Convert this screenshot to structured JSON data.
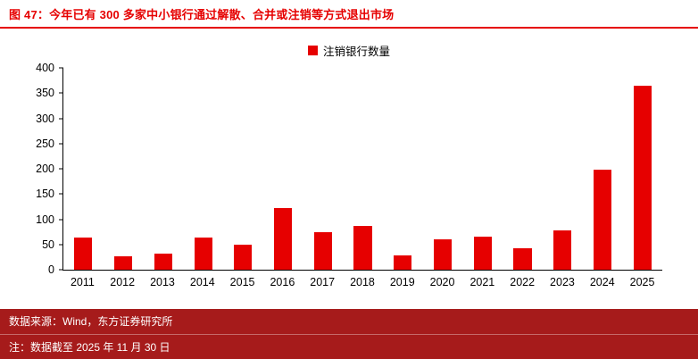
{
  "header": {
    "title": "图 47：今年已有 300 多家中小银行通过解散、合并或注销等方式退出市场"
  },
  "legend": {
    "label": "注销银行数量"
  },
  "footer": {
    "source": "数据来源：Wind，东方证券研究所",
    "note": "注：数据截至 2025 年 11 月 30 日"
  },
  "colors": {
    "bar": "#e60000",
    "title": "#e60000",
    "footer_bg": "#a61b1b",
    "axis": "#000000"
  },
  "chart_data": {
    "type": "bar",
    "title": "注销银行数量",
    "categories": [
      "2011",
      "2012",
      "2013",
      "2014",
      "2015",
      "2016",
      "2017",
      "2018",
      "2019",
      "2020",
      "2021",
      "2022",
      "2023",
      "2024",
      "2025"
    ],
    "values": [
      63,
      27,
      32,
      63,
      50,
      122,
      75,
      87,
      29,
      61,
      65,
      42,
      78,
      198,
      365
    ],
    "xlabel": "",
    "ylabel": "",
    "ylim": [
      0,
      400
    ],
    "yticks": [
      0,
      50,
      100,
      150,
      200,
      250,
      300,
      350,
      400
    ],
    "grid": false,
    "legend_position": "top-center",
    "bar_color": "#e60000"
  }
}
